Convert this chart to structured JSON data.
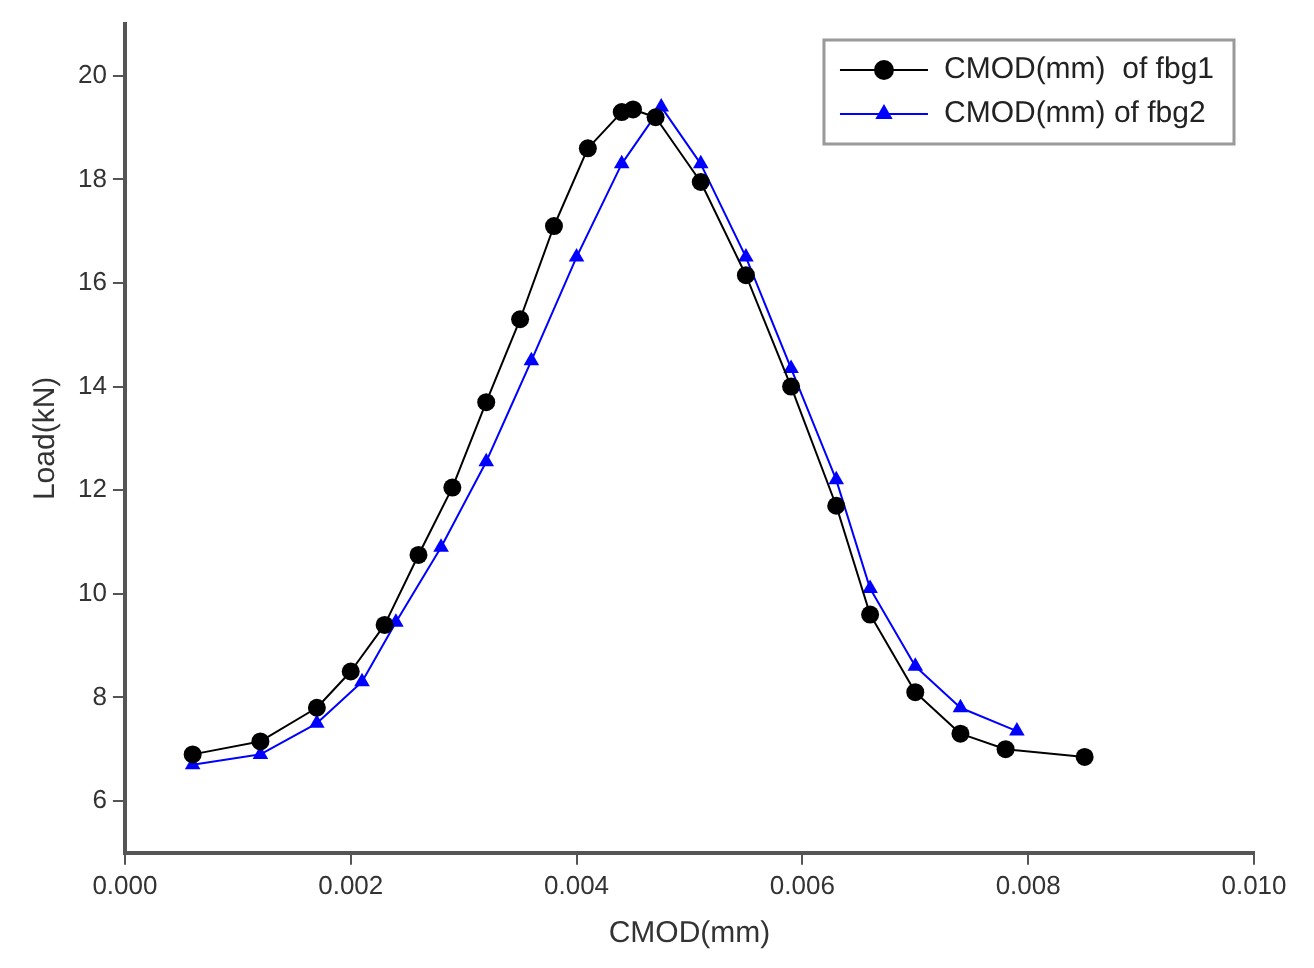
{
  "chart_data": {
    "type": "line",
    "xlabel": "CMOD(mm)",
    "ylabel": "Load(kN)",
    "xlim": [
      0,
      0.01
    ],
    "xticks": [
      {
        "value": 0,
        "label": "0.000"
      },
      {
        "value": 0.002,
        "label": "0.002"
      },
      {
        "value": 0.004,
        "label": "0.004"
      },
      {
        "value": 0.006,
        "label": "0.006"
      },
      {
        "value": 0.008,
        "label": "0.008"
      },
      {
        "value": 0.01,
        "label": "0.010"
      }
    ],
    "ylim": [
      5,
      21
    ],
    "yticks": [
      6,
      8,
      10,
      12,
      14,
      16,
      18,
      20
    ],
    "grid": false,
    "legend": "top right",
    "series": [
      {
        "name": "CMOD(mm)  of fbg1",
        "color": "#000000",
        "marker": "circle",
        "x": [
          0.0006,
          0.0012,
          0.0017,
          0.002,
          0.0023,
          0.0026,
          0.0029,
          0.0032,
          0.0035,
          0.0038,
          0.0041,
          0.0044,
          0.0045,
          0.0047,
          0.0051,
          0.0055,
          0.0059,
          0.0063,
          0.0066,
          0.007,
          0.0074,
          0.0078,
          0.0085
        ],
        "values": [
          6.9,
          7.15,
          7.8,
          8.5,
          9.4,
          10.75,
          12.05,
          13.7,
          15.3,
          17.1,
          18.6,
          19.3,
          19.35,
          19.2,
          17.95,
          16.15,
          14.0,
          11.7,
          9.6,
          8.1,
          7.3,
          7.0,
          6.85
        ]
      },
      {
        "name": "CMOD(mm) of fbg2",
        "color": "#0000ff",
        "marker": "triangle",
        "x": [
          0.0006,
          0.0012,
          0.0017,
          0.0021,
          0.0024,
          0.0028,
          0.0032,
          0.0036,
          0.004,
          0.0044,
          0.00475,
          0.0051,
          0.0055,
          0.0059,
          0.0063,
          0.0066,
          0.007,
          0.0074,
          0.0079
        ],
        "values": [
          6.7,
          6.9,
          7.5,
          8.3,
          9.45,
          10.9,
          12.55,
          14.5,
          16.5,
          18.3,
          19.4,
          18.3,
          16.5,
          14.35,
          12.2,
          10.1,
          8.6,
          7.8,
          7.35
        ]
      }
    ]
  }
}
